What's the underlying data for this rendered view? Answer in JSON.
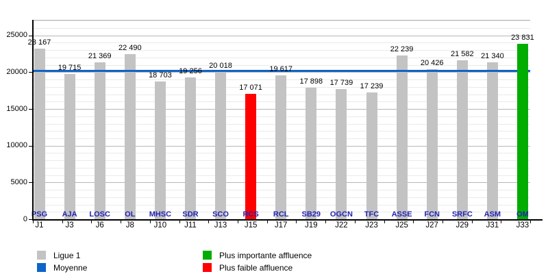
{
  "chart_data": {
    "type": "bar",
    "title": "",
    "x_categories": [
      "J1",
      "J3",
      "J6",
      "J8",
      "J10",
      "J11",
      "J13",
      "J15",
      "J17",
      "J19",
      "J22",
      "J23",
      "J25",
      "J27",
      "J29",
      "J31",
      "J33"
    ],
    "team_labels": [
      "PSG",
      "AJA",
      "LOSC",
      "OL",
      "MHSC",
      "SDR",
      "SCO",
      "RCS",
      "RCL",
      "SB29",
      "OGCN",
      "TFC",
      "ASSE",
      "FCN",
      "SRFC",
      "ASM",
      "OM"
    ],
    "values": [
      23167,
      19715,
      21369,
      22490,
      18703,
      19256,
      20018,
      17071,
      19617,
      17898,
      17739,
      17239,
      22239,
      20426,
      21582,
      21340,
      23831
    ],
    "value_labels": [
      "23 167",
      "19 715",
      "21 369",
      "22 490",
      "18 703",
      "19 256",
      "20 018",
      "17 071",
      "19 617",
      "17 898",
      "17 739",
      "17 239",
      "22 239",
      "20 426",
      "21 582",
      "21 340",
      "23 831"
    ],
    "highlight_min_index": 7,
    "highlight_max_index": 16,
    "average_value": 20218,
    "ylim": [
      0,
      27100
    ],
    "y_ticks": [
      0,
      5000,
      10000,
      15000,
      20000,
      25000
    ],
    "y_minor_step": 1000,
    "grid": "on",
    "legend_position": "bottom",
    "legend": [
      {
        "key": "ligue1",
        "label": "Ligue 1",
        "color": "#C3C3C3",
        "col": 0,
        "row": 0
      },
      {
        "key": "moyenne",
        "label": "Moyenne",
        "color": "#0E64C8",
        "col": 0,
        "row": 1
      },
      {
        "key": "max",
        "label": "Plus importante affluence",
        "color": "#00AD00",
        "col": 1,
        "row": 0
      },
      {
        "key": "min",
        "label": "Plus faible affluence",
        "color": "#FF0000",
        "col": 1,
        "row": 1
      }
    ],
    "colors": {
      "bar_default": "#C3C3C3",
      "bar_min": "#FF0000",
      "bar_max": "#00AD00",
      "average_line": "#0E64C8",
      "team_label": "#2323B3",
      "grid_major": "#B6B6B6",
      "grid_minor": "#EAEAEA",
      "axis": "#000000"
    }
  }
}
